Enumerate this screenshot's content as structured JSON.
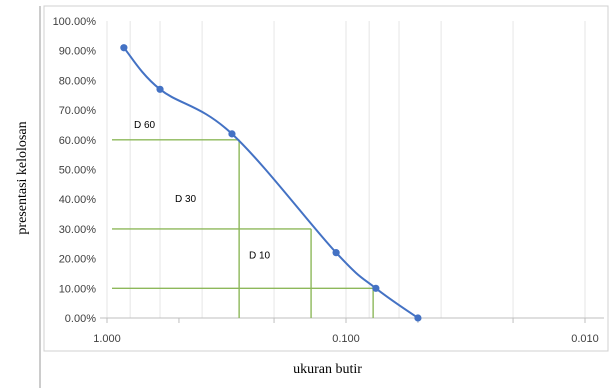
{
  "chart_data": {
    "type": "scatter",
    "x_scale": "log",
    "x_reversed": true,
    "xlim": [
      1.0,
      0.01
    ],
    "ylim": [
      0,
      1.0
    ],
    "xlabel": "ukuran butir",
    "ylabel": "presentasi kelolosan",
    "x_ticks": [
      {
        "value": 1.0,
        "label": "1.000"
      },
      {
        "value": 0.1,
        "label": "0.100"
      },
      {
        "value": 0.01,
        "label": "0.010"
      }
    ],
    "y_ticks": [
      {
        "value": 0.0,
        "label": "0.00%"
      },
      {
        "value": 0.1,
        "label": "10.00%"
      },
      {
        "value": 0.2,
        "label": "20.00%"
      },
      {
        "value": 0.3,
        "label": "30.00%"
      },
      {
        "value": 0.4,
        "label": "40.00%"
      },
      {
        "value": 0.5,
        "label": "50.00%"
      },
      {
        "value": 0.6,
        "label": "60.00%"
      },
      {
        "value": 0.7,
        "label": "70.00%"
      },
      {
        "value": 0.8,
        "label": "80.00%"
      },
      {
        "value": 0.9,
        "label": "90.00%"
      },
      {
        "value": 1.0,
        "label": "100.00%"
      }
    ],
    "series": [
      {
        "points": [
          {
            "x": 0.85,
            "y": 0.91
          },
          {
            "x": 0.6,
            "y": 0.77
          },
          {
            "x": 0.3,
            "y": 0.62
          },
          {
            "x": 0.11,
            "y": 0.22
          },
          {
            "x": 0.075,
            "y": 0.1
          },
          {
            "x": 0.05,
            "y": 0.0
          }
        ],
        "color": "#4472C4"
      }
    ],
    "reference_lines": [
      {
        "label": "D 60",
        "y": 0.6,
        "x": 0.28
      },
      {
        "label": "D 30",
        "y": 0.3,
        "x": 0.14
      },
      {
        "label": "D 10",
        "y": 0.1,
        "x": 0.077
      }
    ],
    "reference_line_color": "#8DB85A",
    "grid": "vertical"
  }
}
